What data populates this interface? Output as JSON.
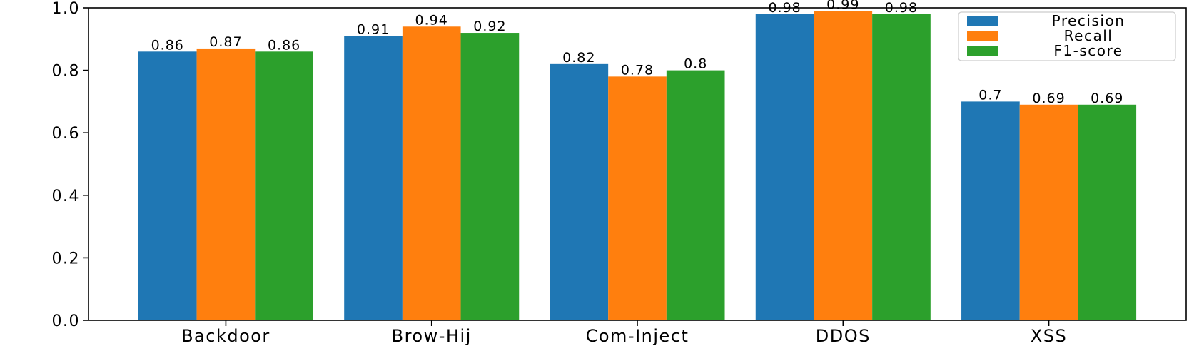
{
  "chart_data": {
    "type": "bar",
    "categories": [
      "Backdoor",
      "Brow-Hij",
      "Com-Inject",
      "DDOS",
      "XSS"
    ],
    "series": [
      {
        "name": "Precision",
        "color": "#1f77b4",
        "values": [
          0.86,
          0.91,
          0.82,
          0.98,
          0.7
        ],
        "labels": [
          "0.86",
          "0.91",
          "0.82",
          "0.98",
          "0.7"
        ]
      },
      {
        "name": "Recall",
        "color": "#ff7f0e",
        "values": [
          0.87,
          0.94,
          0.78,
          0.99,
          0.69
        ],
        "labels": [
          "0.87",
          "0.94",
          "0.78",
          "0.99",
          "0.69"
        ]
      },
      {
        "name": "F1-score",
        "color": "#2ca02c",
        "values": [
          0.86,
          0.92,
          0.8,
          0.98,
          0.69
        ],
        "labels": [
          "0.86",
          "0.92",
          "0.8",
          "0.98",
          "0.69"
        ]
      }
    ],
    "ylim": [
      0,
      1.0
    ],
    "yticks": [
      "0.0",
      "0.2",
      "0.4",
      "0.6",
      "0.8",
      "1.0"
    ],
    "title": "",
    "xlabel": "",
    "ylabel": "",
    "grid": false,
    "legend_position": "top-right"
  }
}
